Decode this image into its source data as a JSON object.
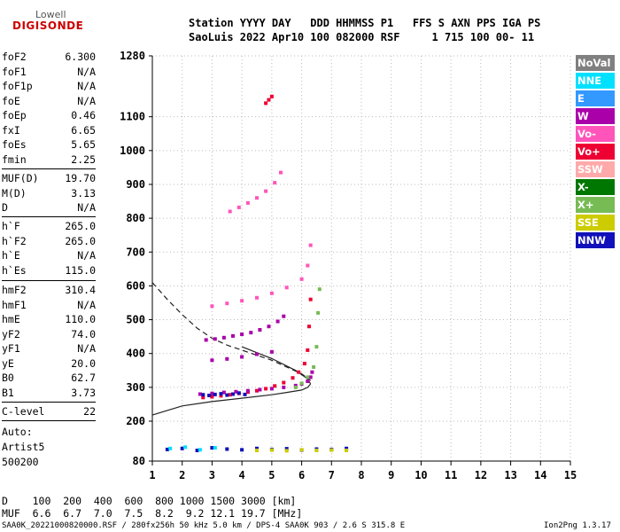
{
  "logo": {
    "line1": "Lowell",
    "line2": "DIGISONDE"
  },
  "header": {
    "line1": "Station YYYY DAY   DDD HHMMSS P1   FFS S AXN PPS IGA PS",
    "line2": "SaoLuis 2022 Apr10 100 082000 RSF     1 715 100 00- 11"
  },
  "params_group1": [
    {
      "name": "foF2",
      "value": "6.300"
    },
    {
      "name": "foF1",
      "value": "N/A"
    },
    {
      "name": "foF1p",
      "value": "N/A"
    },
    {
      "name": "foE",
      "value": "N/A"
    },
    {
      "name": "foEp",
      "value": "0.46"
    },
    {
      "name": "fxI",
      "value": "6.65"
    },
    {
      "name": "foEs",
      "value": "5.65"
    },
    {
      "name": "fmin",
      "value": "2.25"
    }
  ],
  "params_group2": [
    {
      "name": "MUF(D)",
      "value": "19.70"
    },
    {
      "name": "M(D)",
      "value": "3.13"
    },
    {
      "name": "D",
      "value": "N/A"
    }
  ],
  "params_group3": [
    {
      "name": "h`F",
      "value": "265.0"
    },
    {
      "name": "h`F2",
      "value": "265.0"
    },
    {
      "name": "h`E",
      "value": "N/A"
    },
    {
      "name": "h`Es",
      "value": "115.0"
    }
  ],
  "params_group4": [
    {
      "name": "hmF2",
      "value": "310.4"
    },
    {
      "name": "hmF1",
      "value": "N/A"
    },
    {
      "name": "hmE",
      "value": "110.0"
    },
    {
      "name": "yF2",
      "value": "74.0"
    },
    {
      "name": "yF1",
      "value": "N/A"
    },
    {
      "name": "yE",
      "value": "20.0"
    },
    {
      "name": "B0",
      "value": "62.7"
    },
    {
      "name": "B1",
      "value": "3.73"
    }
  ],
  "params_group5": [
    {
      "name": "C-level",
      "value": "22"
    }
  ],
  "auto": {
    "line1": "Auto:",
    "line2": "Artist5",
    "line3": "500200"
  },
  "legend": [
    {
      "label": "NoVal",
      "color": "#808080"
    },
    {
      "label": "NNE",
      "color": "#00e0ff"
    },
    {
      "label": "E",
      "color": "#3399ff"
    },
    {
      "label": "W",
      "color": "#aa00aa"
    },
    {
      "label": "Vo-",
      "color": "#ff55bb"
    },
    {
      "label": "Vo+",
      "color": "#ee0033"
    },
    {
      "label": "SSW",
      "color": "#ffaaaa"
    },
    {
      "label": "X-",
      "color": "#007700"
    },
    {
      "label": "X+",
      "color": "#77bb55"
    },
    {
      "label": "SSE",
      "color": "#cccc00"
    },
    {
      "label": "NNW",
      "color": "#1111bb"
    }
  ],
  "bottom": {
    "d_row": "D    100  200  400  600  800 1000 1500 3000 [km]",
    "muf_row": "MUF  6.6  6.7  7.0  7.5  8.2  9.2 12.1 19.7 [MHz]"
  },
  "footer": {
    "left": "SAA0K_20221000820000.RSF / 280fx256h 50 kHz 5.0 km / DPS-4 SAA0K 903 / 2.6 S 315.8 E",
    "right": "Ion2Png 1.3.17"
  },
  "chart_data": {
    "type": "scatter",
    "title": "",
    "xlabel": "",
    "ylabel": "",
    "xlim": [
      1,
      15
    ],
    "ylim": [
      80,
      1280
    ],
    "x_ticks": [
      1,
      2,
      3,
      4,
      5,
      6,
      7,
      8,
      9,
      10,
      11,
      12,
      13,
      14,
      15
    ],
    "y_ticks": [
      80,
      200,
      300,
      400,
      500,
      600,
      700,
      800,
      900,
      1000,
      1100,
      1280
    ],
    "grid": "dotted",
    "series": [
      {
        "name": "Vo+",
        "color": "#ee0033",
        "x": [
          2.7,
          3.0,
          3.3,
          3.6,
          3.9,
          4.2,
          4.5,
          4.8,
          5.1,
          5.4,
          5.7,
          5.9,
          6.1,
          6.2,
          6.25,
          6.3
        ],
        "y": [
          270,
          272,
          275,
          278,
          282,
          286,
          290,
          296,
          304,
          314,
          328,
          345,
          370,
          410,
          480,
          560
        ]
      },
      {
        "name": "W",
        "color": "#aa00aa",
        "x": [
          2.6,
          3.0,
          3.4,
          3.8,
          4.2,
          4.6,
          5.0,
          5.4,
          5.8,
          6.0,
          6.2,
          6.3,
          6.35
        ],
        "y": [
          280,
          282,
          285,
          287,
          290,
          293,
          296,
          300,
          305,
          310,
          318,
          330,
          345
        ]
      },
      {
        "name": "NNW",
        "color": "#1111bb",
        "x": [
          2.7,
          2.9,
          3.1,
          3.3,
          3.5,
          3.7,
          3.9,
          4.1
        ],
        "y": [
          278,
          276,
          279,
          281,
          277,
          280,
          283,
          279
        ]
      },
      {
        "name": "X+",
        "color": "#77bb55",
        "x": [
          5.8,
          6.0,
          6.2,
          6.4,
          6.5,
          6.55,
          6.6
        ],
        "y": [
          300,
          312,
          330,
          360,
          420,
          520,
          590
        ]
      },
      {
        "name": "Vo-",
        "color": "#ff55bb",
        "x": [
          3.0,
          3.5,
          4.0,
          4.5,
          5.0,
          5.5,
          6.0,
          6.2,
          6.3
        ],
        "y": [
          540,
          548,
          556,
          565,
          578,
          595,
          620,
          660,
          720
        ]
      },
      {
        "name": "Vo- (3rd)",
        "color": "#ff55bb",
        "x": [
          3.6,
          3.9,
          4.2,
          4.5,
          4.8,
          5.1,
          5.3
        ],
        "y": [
          820,
          832,
          845,
          860,
          880,
          905,
          935
        ]
      },
      {
        "name": "Vo- (4th)",
        "color": "#ee0033",
        "x": [
          4.8,
          4.9,
          5.0
        ],
        "y": [
          1140,
          1150,
          1160
        ]
      },
      {
        "name": "W (2nd)",
        "color": "#aa00aa",
        "x": [
          2.8,
          3.1,
          3.4,
          3.7,
          4.0,
          4.3,
          4.6,
          4.9,
          5.2,
          5.4
        ],
        "y": [
          440,
          443,
          447,
          452,
          457,
          462,
          470,
          480,
          495,
          510
        ]
      },
      {
        "name": "W (4th)",
        "color": "#aa00aa",
        "x": [
          3.0,
          3.5,
          4.0,
          4.5,
          5.0
        ],
        "y": [
          380,
          384,
          390,
          398,
          405
        ]
      },
      {
        "name": "Es",
        "color": "#1111bb",
        "x": [
          1.5,
          2.0,
          2.5,
          3.0,
          3.5,
          4.0,
          4.5,
          5.0,
          5.5,
          6.0,
          6.5,
          7.0,
          7.5
        ],
        "y": [
          115,
          118,
          112,
          120,
          116,
          114,
          118,
          115,
          117,
          113,
          116,
          115,
          118
        ]
      },
      {
        "name": "NNE",
        "color": "#00e0ff",
        "x": [
          1.6,
          2.1,
          2.6,
          3.1
        ],
        "y": [
          118,
          122,
          114,
          120
        ]
      },
      {
        "name": "SSE",
        "color": "#cccc00",
        "x": [
          4.5,
          5.0,
          5.5,
          6.0,
          6.5,
          7.0,
          7.5
        ],
        "y": [
          112,
          113,
          111,
          114,
          112,
          113,
          112
        ]
      }
    ],
    "profile_solid": {
      "x": [
        1,
        2,
        3,
        4,
        5,
        5.5,
        6,
        6.2,
        6.3
      ],
      "y": [
        218,
        245,
        258,
        268,
        278,
        285,
        292,
        300,
        310
      ]
    },
    "profile_solid_upper": {
      "x": [
        4,
        5,
        5.8,
        6.2,
        6.3
      ],
      "y": [
        420,
        385,
        350,
        325,
        310
      ]
    },
    "profile_dashed": {
      "x": [
        1,
        1.5,
        2,
        2.5,
        3,
        3.5,
        4,
        4.5,
        5,
        5.5,
        6,
        6.3
      ],
      "y": [
        610,
        560,
        515,
        475,
        445,
        425,
        410,
        395,
        380,
        360,
        340,
        320
      ]
    }
  }
}
